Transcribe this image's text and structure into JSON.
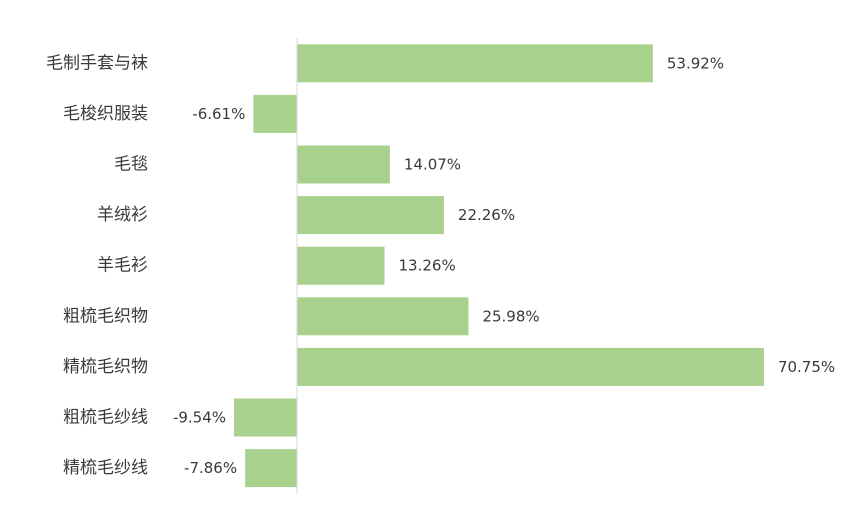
{
  "chart_data": {
    "type": "bar",
    "orientation": "horizontal",
    "categories": [
      "毛制手套与袜",
      "毛梭织服装",
      "毛毯",
      "羊绒衫",
      "羊毛衫",
      "粗梳毛织物",
      "精梳毛织物",
      "粗梳毛纱线",
      "精梳毛纱线"
    ],
    "values": [
      53.92,
      -6.61,
      14.07,
      22.26,
      13.26,
      25.98,
      70.75,
      -9.54,
      -7.86
    ],
    "data_labels": [
      "53.92%",
      "-6.61%",
      "14.07%",
      "22.26%",
      "13.26%",
      "25.98%",
      "70.75%",
      "-9.54%",
      "-7.86%"
    ],
    "unit": "%",
    "bar_color": "#a9d18e",
    "axis_color": "#d9d9d9",
    "grid": false,
    "legend": "none"
  }
}
